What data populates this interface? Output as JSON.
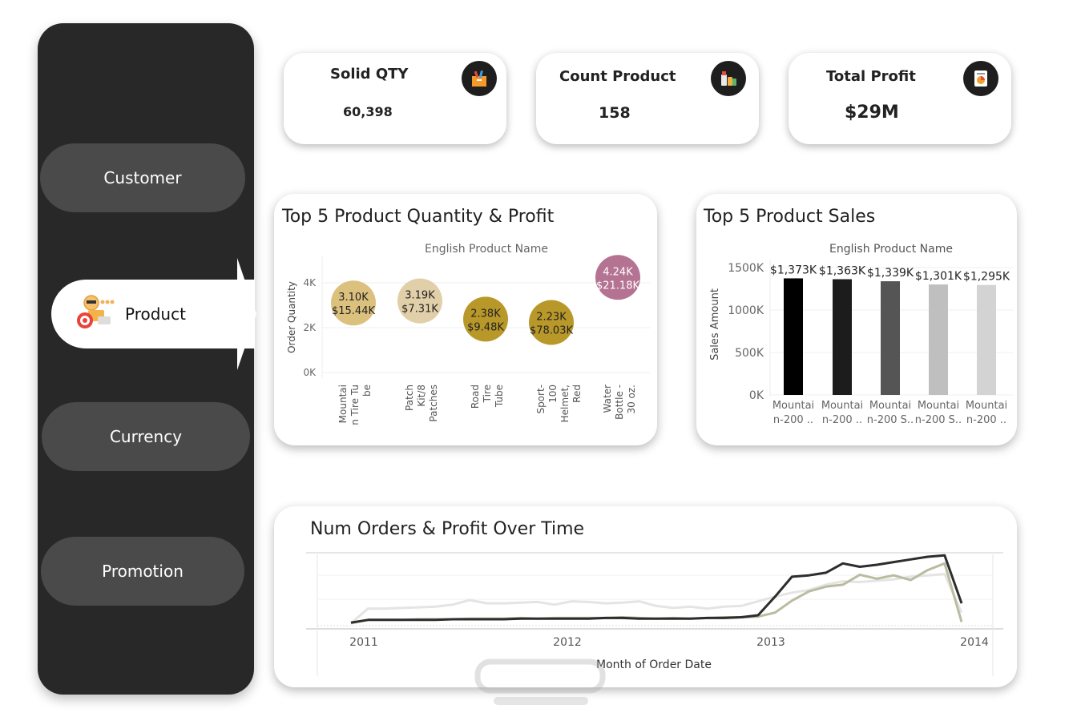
{
  "nav": {
    "customer": "Customer",
    "product": "Product",
    "currency": "Currency",
    "promotion": "Promotion"
  },
  "kpis": [
    {
      "label": "Solid QTY",
      "value": "60,398",
      "icon": "shopping-box-icon"
    },
    {
      "label": "Count Product",
      "value": "158",
      "icon": "products-icon"
    },
    {
      "label": "Total Profit",
      "value": "$29M",
      "icon": "report-icon"
    }
  ],
  "bubble_chart": {
    "title": "Top 5 Product Quantity & Profit",
    "header": "English Product Name",
    "ylabel": "Order Quantity",
    "yticks": [
      "4K",
      "2K",
      "0K"
    ]
  },
  "bar_chart": {
    "title": "Top 5 Product Sales",
    "header": "English Product Name",
    "ylabel": "Sales Amount",
    "yticks": [
      "1500K",
      "1000K",
      "500K",
      "0K"
    ]
  },
  "line_chart": {
    "title": "Num Orders & Profit Over Time",
    "xlabel": "Month of Order Date",
    "xticks": [
      "2011",
      "2012",
      "2013",
      "2014"
    ]
  },
  "chart_data": [
    {
      "type": "scatter",
      "title": "Top 5 Product Quantity & Profit",
      "xlabel": "English Product Name",
      "ylabel": "Order Quantity",
      "ylim": [
        0,
        5000
      ],
      "categories": [
        [
          "Mountai",
          "n Tire Tu",
          "be"
        ],
        [
          "Patch",
          "Kit/8",
          "Patches"
        ],
        [
          "Road",
          "Tire",
          "Tube"
        ],
        [
          "Sport-",
          "100",
          "Helmet,",
          "Red"
        ],
        [
          "Water",
          "Bottle -",
          "30 oz."
        ]
      ],
      "points": [
        {
          "qty": 3100,
          "qty_label": "3.10K",
          "profit_label": "$15.44K",
          "color": "#dcc07e"
        },
        {
          "qty": 3190,
          "qty_label": "3.19K",
          "profit_label": "$7.31K",
          "color": "#e0cfa8"
        },
        {
          "qty": 2380,
          "qty_label": "2.38K",
          "profit_label": "$9.48K",
          "color": "#b9982a"
        },
        {
          "qty": 2230,
          "qty_label": "2.23K",
          "profit_label": "$78.03K",
          "color": "#b9982a"
        },
        {
          "qty": 4240,
          "qty_label": "4.24K",
          "profit_label": "$21.18K",
          "color": "#b47392"
        }
      ]
    },
    {
      "type": "bar",
      "title": "Top 5 Product Sales",
      "xlabel": "English Product Name",
      "ylabel": "Sales Amount",
      "ylim": [
        0,
        1500
      ],
      "categories": [
        [
          "Mountai",
          "n-200 .."
        ],
        [
          "Mountai",
          "n-200 .."
        ],
        [
          "Mountai",
          "n-200 S.."
        ],
        [
          "Mountai",
          "n-200 S.."
        ],
        [
          "Mountai",
          "n-200 .."
        ]
      ],
      "values": [
        1373,
        1363,
        1339,
        1301,
        1295
      ],
      "value_labels": [
        "$1,373K",
        "$1,363K",
        "$1,339K",
        "$1,301K",
        "$1,295K"
      ],
      "colors": [
        "#000000",
        "#1c1c1c",
        "#555555",
        "#bfbfbf",
        "#d3d3d3"
      ]
    },
    {
      "type": "line",
      "title": "Num Orders & Profit Over Time",
      "xlabel": "Month of Order Date",
      "x_range": [
        "2011-01",
        "2014-01"
      ],
      "series": [
        {
          "color": "#e4e4e4",
          "values": [
            0,
            22,
            22,
            23,
            24,
            25,
            28,
            35,
            30,
            30,
            31,
            32,
            28,
            33,
            32,
            30,
            31,
            33,
            26,
            23,
            25,
            22,
            25,
            26,
            33,
            40,
            46,
            50,
            58,
            63,
            62,
            64,
            66,
            70,
            72,
            74,
            16
          ]
        },
        {
          "color": "#bbbba0",
          "values": [
            0,
            5,
            5,
            5,
            6,
            6,
            6,
            7,
            7,
            7,
            8,
            7,
            8,
            8,
            8,
            8,
            9,
            8,
            7,
            8,
            7,
            8,
            9,
            9,
            10,
            16,
            34,
            48,
            55,
            58,
            73,
            67,
            72,
            65,
            80,
            90,
            2
          ]
        },
        {
          "color": "#2d2d2d",
          "values": [
            1,
            5,
            5,
            5,
            5,
            5,
            6,
            6,
            6,
            6,
            7,
            7,
            7,
            7,
            7,
            8,
            8,
            7,
            7,
            7,
            7,
            8,
            8,
            9,
            12,
            40,
            70,
            72,
            76,
            90,
            85,
            88,
            92,
            96,
            100,
            102,
            30
          ]
        }
      ]
    }
  ]
}
